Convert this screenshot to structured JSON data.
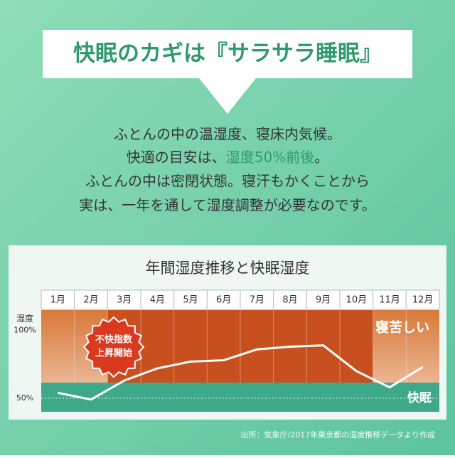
{
  "header": {
    "title": "快眠のカギは『サラサラ睡眠』"
  },
  "body": {
    "lines": [
      "ふとんの中の温湿度、寝床内気候。",
      [
        "快適の目安は、",
        "湿度50%前後",
        "。"
      ],
      "ふとんの中は密閉状態。寝汗もかくことから",
      "実は、一年を通して湿度調整が必要なのです。"
    ]
  },
  "chart_data": {
    "type": "line",
    "title": "年間湿度推移と快眠湿度",
    "y_label": "湿度",
    "categories": [
      "1月",
      "2月",
      "3月",
      "4月",
      "5月",
      "6月",
      "7月",
      "8月",
      "9月",
      "10月",
      "11月",
      "12月"
    ],
    "values": [
      54,
      49,
      63,
      72,
      77,
      78,
      86,
      88,
      89,
      70,
      58,
      73
    ],
    "color": "#ffffff",
    "ylim": [
      40,
      115
    ],
    "yticks": [
      {
        "value": 50,
        "label": "50%"
      },
      {
        "value": 100,
        "label": "100%"
      }
    ],
    "annotations": {
      "callout": [
        "不快指数",
        "上昇開始"
      ],
      "upper_zone": "寝苦しい",
      "lower_zone": "快眠"
    }
  },
  "source": "出所：気象庁/2017年東京都の湿度推移データより作成"
}
